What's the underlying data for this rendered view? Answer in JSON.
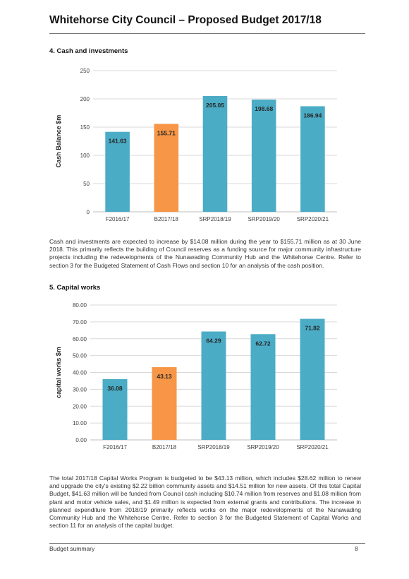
{
  "header": {
    "title": "Whitehorse City Council – Proposed Budget 2017/18"
  },
  "section4": {
    "heading": "4.   Cash and investments",
    "paragraph": "Cash and investments are expected to increase by $14.08 million during the year to $155.71 million as at 30 June 2018. This primarily reflects the building of Council reserves as a funding source for major community infrastructure projects including the redevelopments of the Nunawading Community Hub and the Whitehorse Centre. Refer to section 3 for the Budgeted Statement of Cash Flows and section 10 for an analysis of the cash position."
  },
  "section5": {
    "heading": "5.   Capital works",
    "paragraph": "The total 2017/18 Capital Works Program is budgeted to be $43.13 million, which includes $28.62 million to renew and upgrade the city's existing $2.22 billion community assets and $14.51 million for new assets. Of this total Capital Budget, $41.63 million will be funded from Council cash including $10.74 million from reserves and $1.08 million from plant and motor vehicle sales, and $1.49 million is expected from external grants and contributions. The increase in planned expenditure from 2018/19 primarily reflects works on the major redevelopments of the Nunawading Community Hub and the Whitehorse Centre. Refer to section 3 for the Budgeted Statement of Capital Works and section 11 for an analysis of the capital budget."
  },
  "colors": {
    "bar_default": "#4bacc6",
    "bar_highlight": "#f79646",
    "grid": "#d9d9d9",
    "axis_text": "#404040"
  },
  "chart_data": [
    {
      "type": "bar",
      "categories": [
        "F2016/17",
        "B2017/18",
        "SRP2018/19",
        "SRP2019/20",
        "SRP2020/21"
      ],
      "values": [
        141.63,
        155.71,
        205.05,
        198.68,
        186.94
      ],
      "value_labels": [
        "141.63",
        "155.71",
        "205.05",
        "198.68",
        "186.94"
      ],
      "highlight_index": 1,
      "ylabel": "Cash Balance $m",
      "ylim": [
        0,
        250
      ],
      "yticks": [
        0,
        50,
        100,
        150,
        200,
        250
      ],
      "ytick_labels": [
        "0",
        "50",
        "100",
        "150",
        "200",
        "250"
      ],
      "grid": true
    },
    {
      "type": "bar",
      "categories": [
        "F2016/17",
        "B2017/18",
        "SRP2018/19",
        "SRP2019/20",
        "SRP2020/21"
      ],
      "values": [
        36.08,
        43.13,
        64.29,
        62.72,
        71.82
      ],
      "value_labels": [
        "36.08",
        "43.13",
        "64.29",
        "62.72",
        "71.82"
      ],
      "highlight_index": 1,
      "ylabel": "capital works $m",
      "ylim": [
        0,
        80
      ],
      "yticks": [
        0,
        10,
        20,
        30,
        40,
        50,
        60,
        70,
        80
      ],
      "ytick_labels": [
        "0.00",
        "10.00",
        "20.00",
        "30.00",
        "40.00",
        "50.00",
        "60.00",
        "70.00",
        "80.00"
      ],
      "grid": true
    }
  ],
  "footer": {
    "left": "Budget summary",
    "page_number": "8"
  }
}
